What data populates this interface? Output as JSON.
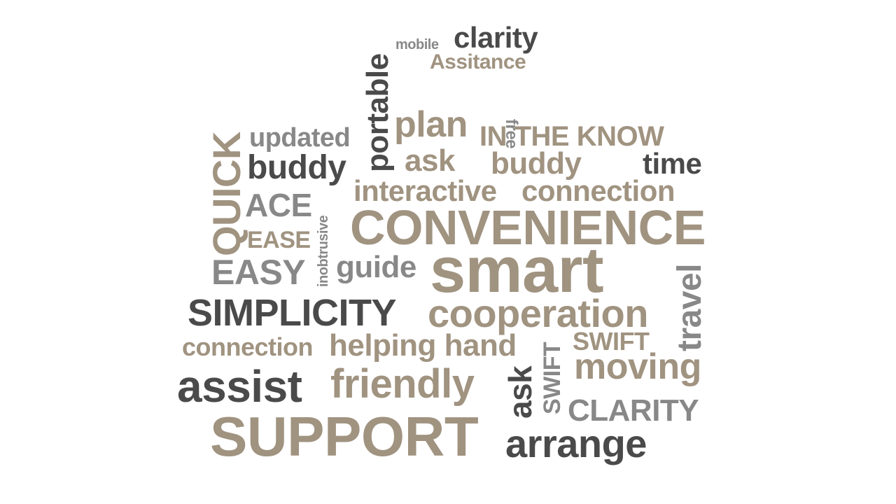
{
  "word_cloud": {
    "words": {
      "mobile": "mobile",
      "clarity": "clarity",
      "assitance": "Assitance",
      "portable": "portable",
      "free": "free",
      "quick": "QUICK",
      "updated": "updated",
      "plan": "plan",
      "in_the_know": "IN THE KNOW",
      "buddy_1": "buddy",
      "ask_1": "ask",
      "buddy_2": "buddy",
      "time": "time",
      "interactive": "interactive",
      "connection_1": "connection",
      "ace": "ACE",
      "inobtrusive": "inobtrusive",
      "convenience": "CONVENIENCE",
      "ease": "EASE",
      "easy": "EASY",
      "guide": "guide",
      "smart": "smart",
      "travel": "travel",
      "simplicity": "SIMPLICITY",
      "cooperation": "cooperation",
      "connection_2": "connection",
      "helping_hand": "helping hand",
      "swift_1": "SWIFT",
      "swift_2": "SWIFT",
      "moving": "moving",
      "assist": "assist",
      "friendly": "friendly",
      "ask_2": "ask",
      "clarity_2": "CLARITY",
      "support": "SUPPORT",
      "arrange": "arrange"
    },
    "palette": {
      "dark": "#4a4a4a",
      "tan": "#a09380",
      "grey": "#888888",
      "background": "#ffffff"
    }
  }
}
